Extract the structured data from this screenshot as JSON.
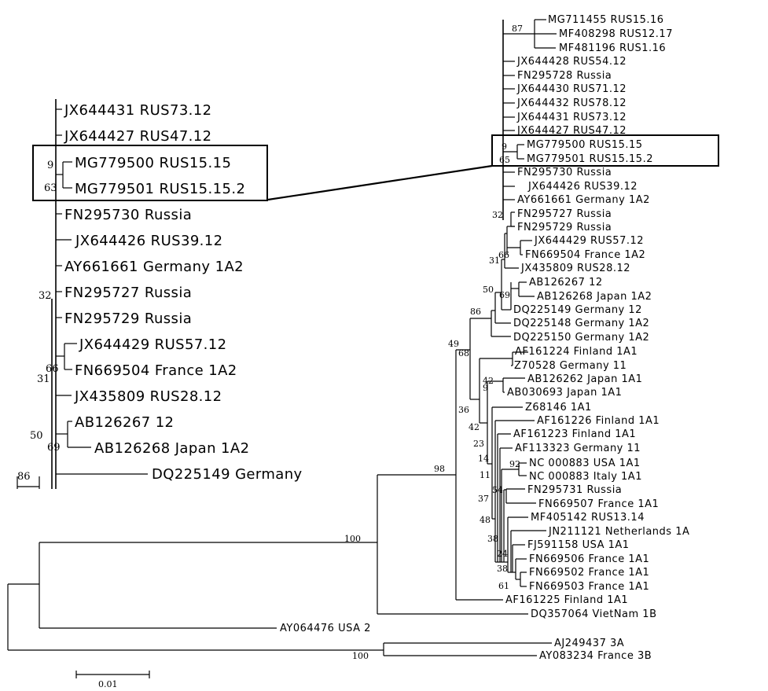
{
  "main_tree": {
    "taxa": [
      "MG711455 RUS15.16",
      "MF408298 RUS12.17",
      "MF481196 RUS1.16",
      "JX644428 RUS54.12",
      "FN295728 Russia",
      "JX644430 RUS71.12",
      "JX644432 RUS78.12",
      "JX644431 RUS73.12",
      "JX644427 RUS47.12",
      "MG779500 RUS15.15",
      "MG779501 RUS15.15.2",
      "FN295730 Russia",
      "JX644426 RUS39.12",
      "AY661661 Germany 1A2",
      "FN295727 Russia",
      "FN295729 Russia",
      "JX644429 RUS57.12",
      "FN669504 France 1A2",
      "JX435809 RUS28.12",
      "AB126267 12",
      "AB126268 Japan 1A2",
      "DQ225149 Germany 12",
      "DQ225148 Germany 1A2",
      "DQ225150 Germany 1A2",
      "AF161224 Finland 1A1",
      "Z70528 Germany 11",
      "AB126262 Japan 1A1",
      "AB030693 Japan 1A1",
      "Z68146 1A1",
      "AF161226 Finland 1A1",
      "AF161223 Finland 1A1",
      "AF113323 Germany 11",
      "NC 000883 USA 1A1",
      "NC 000883 Italy 1A1",
      "FN295731 Russia",
      "FN669507 France 1A1",
      "MF405142 RUS13.14",
      "JN211121 Netherlands 1A",
      "FJ591158 USA 1A1",
      "FN669506 France 1A1",
      "FN669502 France 1A1",
      "FN669503 France 1A1",
      "AF161225 Finland 1A1",
      "DQ357064 VietNam 1B",
      "AY064476 USA 2",
      "AJ249437 3A",
      "AY083234 France 3B"
    ],
    "bootstrap": [
      "87",
      "9",
      "65",
      "32",
      "66",
      "31",
      "50",
      "69",
      "86",
      "49",
      "68",
      "42",
      "9",
      "36",
      "42",
      "23",
      "14",
      "92",
      "11",
      "54",
      "37",
      "48",
      "38",
      "24",
      "38",
      "61",
      "98",
      "100",
      "100"
    ]
  },
  "inset_tree": {
    "taxa": [
      "JX644431 RUS73.12",
      "JX644427 RUS47.12",
      "MG779500 RUS15.15",
      "MG779501 RUS15.15.2",
      "FN295730 Russia",
      "JX644426 RUS39.12",
      "AY661661 Germany 1A2",
      "FN295727 Russia",
      "FN295729 Russia",
      "JX644429 RUS57.12",
      "FN669504 France 1A2",
      "JX435809 RUS28.12",
      "AB126267 12",
      "AB126268 Japan 1A2",
      "DQ225149 Germany"
    ],
    "bootstrap": [
      "9",
      "63",
      "32",
      "66",
      "31",
      "50",
      "69",
      "86"
    ]
  },
  "scale_bar": {
    "label": "0.01"
  }
}
